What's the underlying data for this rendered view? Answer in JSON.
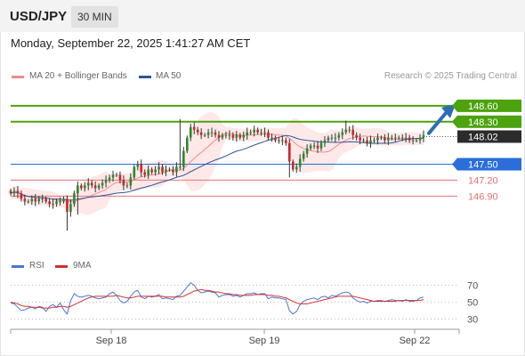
{
  "header": {
    "symbol": "USD/JPY",
    "timeframe": "30 MIN"
  },
  "timestamp": "Monday, September 22, 2025 1:41:27 AM CET",
  "legend": {
    "ma20": "MA 20 + Bollinger Bands",
    "ma50": "MA 50",
    "rsi": "RSI",
    "rsi_ma": "9MA",
    "credit": "Research © 2025 Trading Central"
  },
  "colors": {
    "resistance": "#4ca30d",
    "pivot": "#2a6ddb",
    "support": "#e57373",
    "price": "#2b2b2b",
    "ma20": "#f48a8a",
    "ma50": "#2f5597",
    "band": "#fde0e0",
    "up": "#2a8a2a",
    "down": "#c62828",
    "rsi": "#4a74d8",
    "rsi_ma": "#d32f2f",
    "arrow": "#2e6db4"
  },
  "chart_data": [
    {
      "type": "candlestick",
      "instrument": "USD/JPY",
      "timeframe": "30 MIN",
      "x_labels": [
        "Sep 18",
        "Sep 19",
        "Sep 22"
      ],
      "ylim": [
        145.9,
        149.0
      ],
      "levels": [
        {
          "value": 148.6,
          "label": "148.60",
          "kind": "resistance"
        },
        {
          "value": 148.3,
          "label": "148.30",
          "kind": "resistance"
        },
        {
          "value": 148.02,
          "label": "148.02",
          "kind": "current"
        },
        {
          "value": 147.5,
          "label": "147.50",
          "kind": "pivot"
        },
        {
          "value": 147.2,
          "label": "147.20",
          "kind": "support"
        },
        {
          "value": 146.9,
          "label": "146.90",
          "kind": "support"
        }
      ],
      "closes": [
        146.95,
        147.0,
        146.95,
        146.85,
        146.8,
        146.8,
        146.85,
        146.8,
        146.85,
        146.85,
        146.8,
        146.75,
        146.75,
        146.8,
        146.8,
        146.85,
        146.6,
        146.75,
        146.95,
        147.1,
        147.05,
        147.1,
        147.15,
        147.1,
        147.05,
        147.1,
        147.15,
        147.2,
        147.25,
        147.3,
        147.3,
        147.2,
        147.1,
        147.1,
        147.25,
        147.45,
        147.5,
        147.35,
        147.3,
        147.4,
        147.35,
        147.4,
        147.45,
        147.35,
        147.4,
        147.4,
        147.35,
        147.45,
        147.45,
        147.75,
        148.0,
        148.2,
        148.15,
        148.1,
        148.05,
        148.05,
        148.1,
        148.1,
        148.05,
        148.0,
        148.05,
        148.05,
        148.05,
        148.0,
        148.05,
        148.0,
        148.05,
        148.1,
        148.1,
        148.15,
        148.1,
        148.1,
        148.1,
        148.0,
        148.0,
        147.95,
        147.95,
        147.95,
        147.9,
        147.55,
        147.4,
        147.45,
        147.6,
        147.7,
        147.8,
        147.85,
        147.85,
        147.8,
        147.9,
        147.95,
        148.0,
        148.0,
        148.0,
        148.05,
        148.1,
        148.15,
        148.15,
        148.05,
        148.0,
        147.95,
        147.95,
        147.9,
        147.95,
        147.95,
        148.0,
        148.0,
        147.95,
        148.0,
        148.0,
        148.0,
        148.0,
        148.0,
        148.0,
        147.95,
        147.95,
        147.95,
        148.0,
        148.05
      ],
      "forecast_arrow": {
        "from": 148.05,
        "to": 148.6
      },
      "rsi": {
        "ylim": [
          20,
          80
        ],
        "ticks": [
          70,
          50,
          30
        ],
        "values": [
          49,
          48,
          44,
          40,
          41,
          43,
          44,
          42,
          45,
          44,
          39,
          45,
          47,
          44,
          49,
          41,
          36,
          52,
          60,
          57,
          56,
          57,
          58,
          57,
          55,
          54,
          55,
          56,
          60,
          62,
          58,
          52,
          49,
          51,
          57,
          62,
          64,
          56,
          54,
          57,
          56,
          57,
          59,
          54,
          55,
          54,
          53,
          57,
          58,
          63,
          68,
          73,
          70,
          64,
          61,
          62,
          63,
          62,
          61,
          56,
          58,
          59,
          59,
          57,
          58,
          56,
          58,
          60,
          60,
          61,
          59,
          60,
          60,
          54,
          56,
          55,
          55,
          54,
          53,
          40,
          36,
          39,
          47,
          51,
          53,
          54,
          55,
          53,
          56,
          57,
          55,
          58,
          57,
          59,
          61,
          62,
          61,
          55,
          52,
          50,
          51,
          49,
          51,
          51,
          52,
          52,
          51,
          52,
          53,
          52,
          52,
          51,
          53,
          51,
          51,
          52,
          55,
          56
        ],
        "ma_values": [
          50,
          49,
          48,
          46,
          45,
          45,
          44,
          44,
          44,
          43,
          43,
          43,
          44,
          44,
          45,
          45,
          44,
          45,
          47,
          49,
          51,
          53,
          55,
          56,
          57,
          57,
          57,
          57,
          57,
          57,
          58,
          57,
          56,
          55,
          55,
          56,
          57,
          57,
          57,
          57,
          57,
          57,
          57,
          57,
          56,
          56,
          56,
          56,
          56,
          57,
          59,
          61,
          63,
          64,
          65,
          64,
          64,
          63,
          62,
          62,
          61,
          60,
          60,
          59,
          59,
          58,
          58,
          58,
          58,
          59,
          59,
          59,
          59,
          58,
          58,
          57,
          57,
          56,
          55,
          53,
          51,
          49,
          48,
          48,
          48,
          49,
          50,
          51,
          52,
          53,
          54,
          55,
          56,
          57,
          57,
          57,
          57,
          57,
          56,
          55,
          54,
          53,
          52,
          51,
          51,
          51,
          51,
          51,
          51,
          51,
          52,
          52,
          52,
          52,
          52,
          52,
          52,
          53
        ]
      }
    }
  ]
}
